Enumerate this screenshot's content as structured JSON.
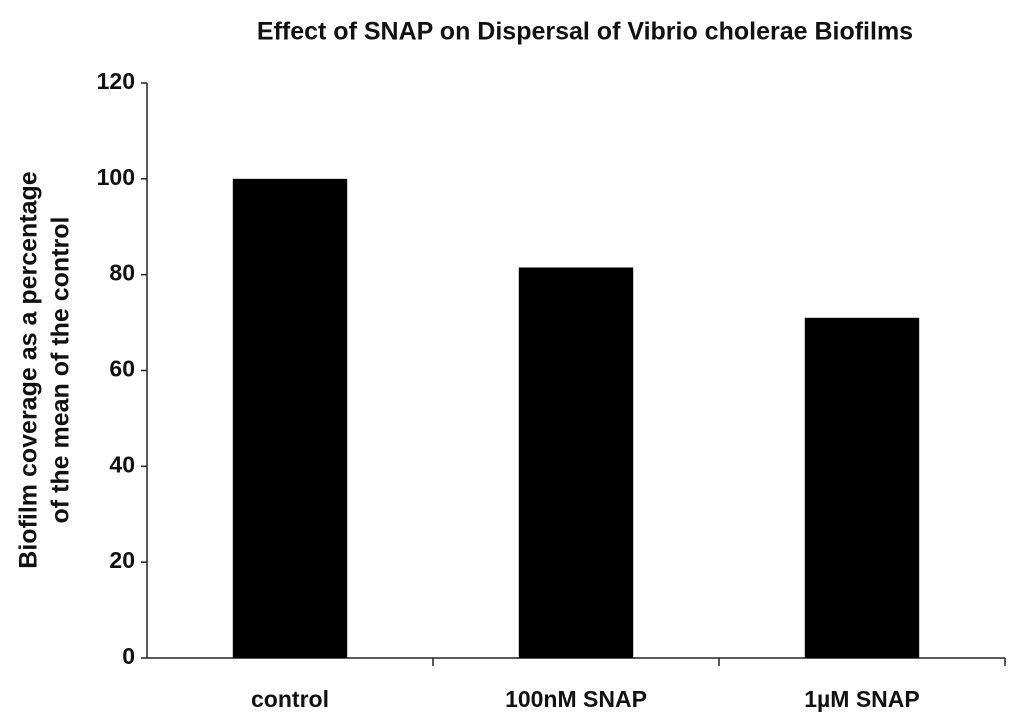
{
  "chart_data": {
    "type": "bar",
    "title": "Effect of SNAP on Dispersal of Vibrio cholerae Biofilms",
    "ylabel": [
      "Biofilm coverage as a percentage",
      "of the mean of the control"
    ],
    "categories": [
      "control",
      "100nM SNAP",
      "1µM SNAP"
    ],
    "values": [
      100,
      81.5,
      71
    ],
    "color": "#000000",
    "ylim": [
      0,
      120
    ],
    "yticks": [
      0,
      20,
      40,
      60,
      80,
      100,
      120
    ],
    "grid": false
  }
}
